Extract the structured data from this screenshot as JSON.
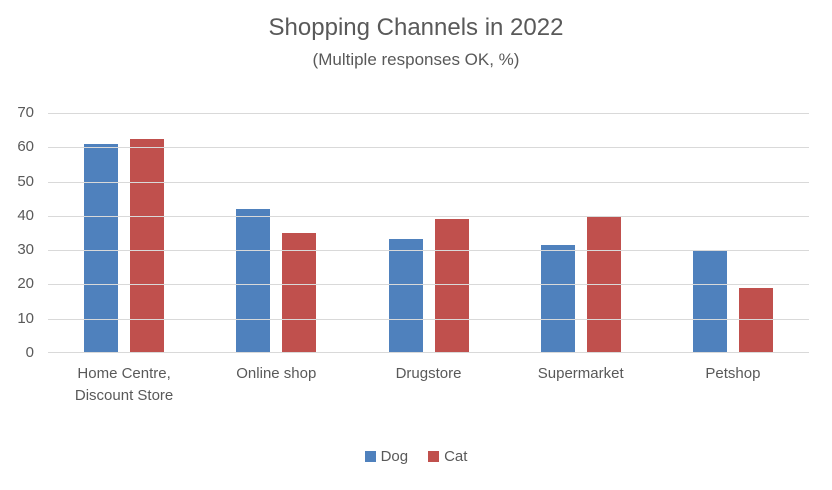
{
  "chart_data": {
    "type": "bar",
    "title": "Shopping Channels in 2022",
    "subtitle": "(Multiple responses OK, %)",
    "categories": [
      "Home Centre, Discount Store",
      "Online shop",
      "Drugstore",
      "Supermarket",
      "Petshop"
    ],
    "series": [
      {
        "name": "Dog",
        "color": "#4F81BD",
        "values": [
          61,
          42,
          33.3,
          31.5,
          30
        ]
      },
      {
        "name": "Cat",
        "color": "#C0504D",
        "values": [
          62.5,
          35,
          39,
          40,
          19
        ]
      }
    ],
    "xlabel": "",
    "ylabel": "",
    "ylim": [
      0,
      70
    ],
    "yticks": [
      0,
      10,
      20,
      30,
      40,
      50,
      60,
      70
    ],
    "grid": true,
    "gridline_color": "#d9d9d9",
    "text_color": "#595959",
    "legend_position": "bottom"
  }
}
